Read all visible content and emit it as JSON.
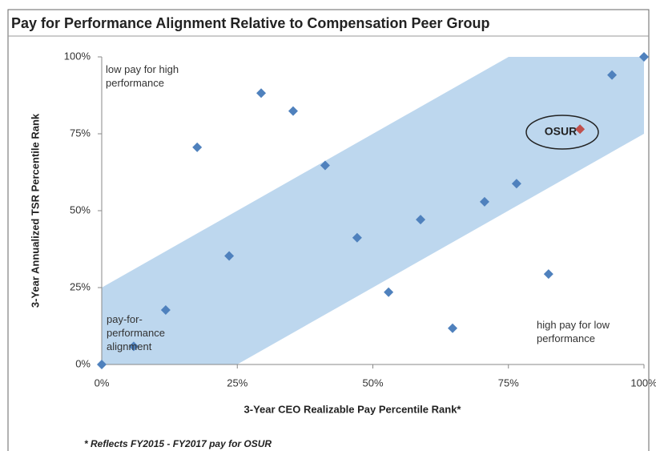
{
  "chart_data": {
    "type": "scatter",
    "title": "Pay for Performance Alignment Relative to Compensation Peer Group",
    "x_label": "3-Year CEO Realizable  Pay Percentile Rank*",
    "y_label": "3-Year Annualized TSR Percentile Rank",
    "x": [
      0,
      5.9,
      11.8,
      17.6,
      23.5,
      29.4,
      35.3,
      41.2,
      47.1,
      52.9,
      58.8,
      64.7,
      70.6,
      76.5,
      82.4,
      88.2,
      94.1,
      100
    ],
    "values": [
      0,
      5.9,
      17.7,
      70.6,
      35.3,
      88.2,
      82.4,
      64.7,
      41.2,
      23.5,
      47.1,
      11.8,
      52.9,
      58.8,
      29.4,
      76.5,
      94.1,
      100
    ],
    "colors": [
      "#4f81bd",
      "#4f81bd",
      "#4f81bd",
      "#4f81bd",
      "#4f81bd",
      "#4f81bd",
      "#4f81bd",
      "#4f81bd",
      "#4f81bd",
      "#4f81bd",
      "#4f81bd",
      "#4f81bd",
      "#4f81bd",
      "#4f81bd",
      "#4f81bd",
      "#c0504d",
      "#4f81bd",
      "#4f81bd"
    ],
    "xlim": [
      0,
      100
    ],
    "ylim": [
      0,
      100
    ],
    "xticks": [
      {
        "value": 0,
        "label": "0%"
      },
      {
        "value": 25,
        "label": "25%"
      },
      {
        "value": 50,
        "label": "50%"
      },
      {
        "value": 75,
        "label": "75%"
      },
      {
        "value": 100,
        "label": "100%"
      }
    ],
    "yticks": [
      {
        "value": 0,
        "label": "0%"
      },
      {
        "value": 25,
        "label": "25%"
      },
      {
        "value": 50,
        "label": "50%"
      },
      {
        "value": 75,
        "label": "75%"
      },
      {
        "value": 100,
        "label": "100%"
      }
    ],
    "annotations": [
      "low pay for high performance",
      "pay-for-performance alignment",
      "high pay for low performance",
      "OSUR"
    ],
    "footnote": "* Reflects FY2015 - FY2017 pay for OSUR"
  }
}
